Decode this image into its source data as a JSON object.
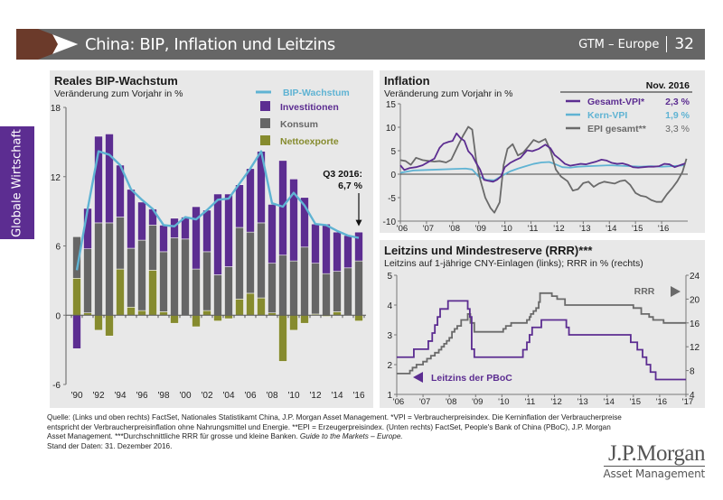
{
  "header": {
    "title": "China: BIP, Inflation und Leitzins",
    "series_label": "GTM – Europe",
    "page_number": "32"
  },
  "side_tab": "Globale Wirtschaft",
  "colors": {
    "header_arrow": "#6b3a2a",
    "header_bar": "#666666",
    "side_tab": "#5c2d91",
    "invest": "#5c2d91",
    "konsum": "#666666",
    "netto": "#868b2e",
    "gdp_line": "#5fb3d3",
    "panel_bg": "#e8e8e8"
  },
  "chart_data": [
    {
      "type": "bar",
      "stacked": true,
      "title": "Reales BIP-Wachstum",
      "subtitle": "Veränderung zum Vorjahr in %",
      "ylim": [
        -6,
        18
      ],
      "yticks": [
        18,
        12,
        6,
        0,
        -6
      ],
      "xtick_labels": [
        "'90",
        "'92",
        "'94",
        "'96",
        "'98",
        "'00",
        "'02",
        "'04",
        "'06",
        "'08",
        "'10",
        "'12",
        "'14",
        "'16"
      ],
      "categories": [
        1990,
        1991,
        1992,
        1993,
        1994,
        1995,
        1996,
        1997,
        1998,
        1999,
        2000,
        2001,
        2002,
        2003,
        2004,
        2005,
        2006,
        2007,
        2008,
        2009,
        2010,
        2011,
        2012,
        2013,
        2014,
        2015,
        2016
      ],
      "series": [
        {
          "name": "Nettoexporte",
          "values": [
            3.2,
            0.2,
            -1.3,
            -1.8,
            4.0,
            0.7,
            0.4,
            3.9,
            0.3,
            -0.7,
            0.0,
            -1.0,
            0.4,
            -0.5,
            -0.3,
            1.4,
            1.9,
            1.5,
            0.2,
            -4.0,
            -1.3,
            -0.7,
            0.1,
            -0.1,
            0.3,
            0.0,
            -0.5
          ]
        },
        {
          "name": "Konsum",
          "values": [
            3.6,
            5.55,
            8.0,
            8.0,
            4.5,
            5.1,
            6.1,
            3.9,
            5.2,
            6.7,
            6.6,
            4.0,
            5.1,
            3.5,
            4.2,
            6.2,
            5.3,
            6.5,
            4.3,
            5.2,
            4.7,
            5.9,
            4.4,
            3.6,
            3.5,
            4.1,
            4.7
          ]
        },
        {
          "name": "Investitionen",
          "values": [
            -2.9,
            3.5,
            7.5,
            7.7,
            4.5,
            5.1,
            3.3,
            1.4,
            2.3,
            1.7,
            1.9,
            5.4,
            3.6,
            7.0,
            6.3,
            3.7,
            5.5,
            6.2,
            5.1,
            8.2,
            7.1,
            4.3,
            3.4,
            4.3,
            3.4,
            2.8,
            2.5
          ]
        },
        {
          "name": "BIP-Wachstum",
          "type": "line",
          "values": [
            3.9,
            9.2,
            14.2,
            13.9,
            13.0,
            10.9,
            10.0,
            9.2,
            7.8,
            7.7,
            8.5,
            8.3,
            9.1,
            10.0,
            10.1,
            11.4,
            12.7,
            14.2,
            9.7,
            9.4,
            10.6,
            9.5,
            7.9,
            7.8,
            7.3,
            6.9,
            6.7
          ]
        }
      ],
      "legend": [
        {
          "label": "BIP-Wachstum",
          "kind": "line"
        },
        {
          "label": "Investitionen",
          "kind": "box"
        },
        {
          "label": "Konsum",
          "kind": "box"
        },
        {
          "label": "Nettoexporte",
          "kind": "box"
        }
      ],
      "legend_placement": "top-right",
      "annotation": {
        "line1": "Q3 2016:",
        "line2": "6,7 %"
      }
    },
    {
      "type": "line",
      "title": "Inflation",
      "subtitle": "Veränderung zum Vorjahr in %",
      "ylim": [
        -10,
        15
      ],
      "yticks": [
        15,
        10,
        5,
        0,
        -5,
        -10
      ],
      "xlim": [
        2006,
        2017
      ],
      "xtick_labels": [
        "'06",
        "'07",
        "'08",
        "'09",
        "'10",
        "'11",
        "'12",
        "'13",
        "'14",
        "'15",
        "'16"
      ],
      "legend_header": "Nov. 2016",
      "legend_placement": "top-right",
      "series": [
        {
          "name": "Gesamt-VPI*",
          "latest": "2,3 %",
          "x": [
            2006.0,
            2006.15,
            2006.35,
            2006.6,
            2006.85,
            2007.1,
            2007.3,
            2007.5,
            2007.65,
            2007.85,
            2008.0,
            2008.15,
            2008.3,
            2008.45,
            2008.6,
            2008.75,
            2008.9,
            2009.05,
            2009.2,
            2009.35,
            2009.55,
            2009.7,
            2009.85,
            2010.0,
            2010.2,
            2010.4,
            2010.6,
            2010.85,
            2011.05,
            2011.3,
            2011.55,
            2011.75,
            2011.9,
            2012.1,
            2012.3,
            2012.5,
            2012.7,
            2012.9,
            2013.1,
            2013.3,
            2013.5,
            2013.7,
            2013.9,
            2014.1,
            2014.3,
            2014.5,
            2014.7,
            2014.9,
            2015.1,
            2015.3,
            2015.5,
            2015.7,
            2015.9,
            2016.1,
            2016.3,
            2016.5,
            2016.7,
            2016.9
          ],
          "y": [
            1.9,
            0.9,
            1.3,
            1.5,
            1.9,
            2.7,
            3.3,
            5.6,
            6.5,
            6.9,
            7.1,
            8.7,
            7.7,
            7.1,
            4.9,
            4.0,
            2.4,
            1.0,
            -1.2,
            -1.4,
            -1.6,
            -1.2,
            -0.5,
            1.5,
            2.4,
            3.0,
            3.5,
            5.1,
            4.9,
            5.4,
            6.3,
            5.5,
            4.1,
            3.2,
            2.2,
            1.8,
            2.0,
            2.2,
            2.1,
            2.4,
            2.7,
            3.1,
            2.9,
            2.4,
            2.2,
            2.3,
            2.0,
            1.5,
            1.4,
            1.5,
            1.6,
            1.6,
            1.7,
            2.2,
            2.1,
            1.5,
            1.9,
            2.3
          ]
        },
        {
          "name": "Kern-VPI",
          "latest": "1,9 %",
          "x": [
            2006.0,
            2006.5,
            2007.0,
            2007.5,
            2008.0,
            2008.5,
            2008.75,
            2009.0,
            2009.3,
            2009.6,
            2009.9,
            2010.2,
            2010.5,
            2010.8,
            2011.1,
            2011.4,
            2011.7,
            2011.9,
            2012.2,
            2012.5,
            2012.8,
            2013.2,
            2013.6,
            2014.0,
            2014.4,
            2014.8,
            2015.2,
            2015.6,
            2016.0,
            2016.4,
            2016.9
          ],
          "y": [
            0.3,
            0.8,
            0.9,
            1.0,
            1.1,
            1.2,
            1.0,
            -0.5,
            -1.2,
            -1.3,
            -0.3,
            0.6,
            1.2,
            1.7,
            2.2,
            2.5,
            2.6,
            2.2,
            1.5,
            1.4,
            1.6,
            1.7,
            1.8,
            1.9,
            1.8,
            1.7,
            1.6,
            1.7,
            1.6,
            1.7,
            1.9
          ]
        },
        {
          "name": "EPI gesamt**",
          "latest": "3,3 %",
          "x": [
            2006.0,
            2006.2,
            2006.4,
            2006.6,
            2006.85,
            2007.1,
            2007.3,
            2007.5,
            2007.75,
            2007.95,
            2008.2,
            2008.4,
            2008.6,
            2008.75,
            2008.9,
            2009.05,
            2009.25,
            2009.45,
            2009.6,
            2009.8,
            2009.95,
            2010.1,
            2010.3,
            2010.5,
            2010.7,
            2010.9,
            2011.1,
            2011.3,
            2011.55,
            2011.75,
            2011.95,
            2012.15,
            2012.4,
            2012.6,
            2012.8,
            2013.0,
            2013.2,
            2013.4,
            2013.6,
            2013.8,
            2014.0,
            2014.2,
            2014.4,
            2014.6,
            2014.8,
            2015.0,
            2015.2,
            2015.4,
            2015.6,
            2015.8,
            2016.0,
            2016.2,
            2016.4,
            2016.6,
            2016.8,
            2016.95
          ],
          "y": [
            3.0,
            2.8,
            2.0,
            3.5,
            3.0,
            2.8,
            2.7,
            2.8,
            2.5,
            3.1,
            6.0,
            8.2,
            10.1,
            9.5,
            3.0,
            -1.0,
            -5.0,
            -7.2,
            -8.2,
            -6.0,
            1.9,
            5.4,
            6.4,
            4.0,
            4.6,
            5.9,
            7.3,
            6.8,
            7.5,
            5.0,
            1.0,
            -0.5,
            -1.5,
            -3.5,
            -3.2,
            -1.9,
            -1.6,
            -2.7,
            -2.0,
            -1.6,
            -1.8,
            -2.0,
            -1.5,
            -1.3,
            -2.3,
            -4.0,
            -4.6,
            -4.8,
            -5.5,
            -5.9,
            -5.9,
            -4.3,
            -3.0,
            -1.5,
            0.5,
            3.3
          ]
        }
      ]
    },
    {
      "type": "line",
      "title": "Leitzins und Mindestreserve (RRR)***",
      "subtitle": "Leitzins auf 1-jährige CNY-Einlagen (links); RRR in % (rechts)",
      "ylim_left": [
        1,
        5
      ],
      "yticks_left": [
        5,
        4,
        3,
        2,
        1
      ],
      "ylim_right": [
        4,
        24
      ],
      "yticks_right": [
        24,
        20,
        16,
        12,
        8,
        4
      ],
      "xlim": [
        2006,
        2017
      ],
      "xtick_labels": [
        "'06",
        "'07",
        "'08",
        "'09",
        "'10",
        "'11",
        "'12",
        "'13",
        "'14",
        "'15",
        "'16",
        "'17"
      ],
      "series": [
        {
          "name": "Leitzins der PBoC",
          "axis": "left",
          "step": true,
          "x": [
            2006.0,
            2006.65,
            2007.2,
            2007.35,
            2007.45,
            2007.55,
            2007.65,
            2007.95,
            2008.7,
            2008.78,
            2008.85,
            2008.9,
            2008.95,
            2010.8,
            2010.95,
            2011.05,
            2011.15,
            2011.3,
            2011.5,
            2012.45,
            2012.55,
            2014.9,
            2015.15,
            2015.35,
            2015.5,
            2015.65,
            2015.85,
            2017.0
          ],
          "y": [
            2.25,
            2.52,
            2.79,
            3.06,
            3.33,
            3.6,
            3.87,
            4.14,
            3.87,
            3.6,
            2.52,
            2.52,
            2.25,
            2.5,
            2.75,
            3.0,
            3.25,
            3.25,
            3.5,
            3.25,
            3.0,
            2.75,
            2.5,
            2.25,
            2.0,
            1.75,
            1.5,
            1.5
          ]
        },
        {
          "name": "RRR",
          "axis": "right",
          "step": true,
          "x": [
            2006.0,
            2006.5,
            2006.6,
            2006.75,
            2007.0,
            2007.15,
            2007.3,
            2007.45,
            2007.6,
            2007.7,
            2007.8,
            2007.9,
            2008.0,
            2008.1,
            2008.2,
            2008.3,
            2008.45,
            2008.7,
            2008.8,
            2008.95,
            2010.05,
            2010.15,
            2010.35,
            2010.95,
            2011.05,
            2011.1,
            2011.2,
            2011.3,
            2011.4,
            2011.45,
            2011.9,
            2012.1,
            2012.4,
            2014.85,
            2015.0,
            2015.3,
            2015.6,
            2015.75,
            2016.15,
            2017.0
          ],
          "y": [
            7.5,
            8.0,
            8.5,
            9.0,
            9.5,
            10.0,
            10.5,
            11.0,
            11.5,
            12.0,
            12.5,
            13.0,
            13.5,
            14.5,
            15.0,
            15.5,
            16.5,
            17.5,
            16.0,
            14.5,
            15.0,
            15.5,
            16.0,
            16.5,
            17.0,
            17.5,
            18.0,
            18.5,
            19.5,
            21.0,
            20.5,
            20.0,
            19.0,
            19.0,
            18.5,
            17.5,
            17.0,
            16.5,
            16.0,
            16.0
          ]
        }
      ],
      "labels": {
        "rrr": "RRR",
        "leitzins": "Leitzins der PBoC"
      }
    }
  ],
  "footnote": {
    "text": "Quelle: (Links und oben rechts) FactSet, Nationales Statistikamt China, J.P. Morgan Asset Management. *VPI = Verbraucherpreisindex. Die Kerninflation der Verbraucherpreise entspricht der Verbraucherpreisinflation ohne Nahrungsmittel und Energie. **EPI = Erzeugerpreisindex. (Unten rechts) FactSet, People's Bank of China (PBoC), J.P. Morgan Asset Management. ***Durchschnittliche RRR für grosse und kleine Banken. ",
    "italic": "Guide to the Markets – Europe.",
    "date": "Stand der Daten: 31. Dezember 2016."
  },
  "logo": {
    "name": "J.P.Morgan",
    "sub": "Asset Management"
  }
}
